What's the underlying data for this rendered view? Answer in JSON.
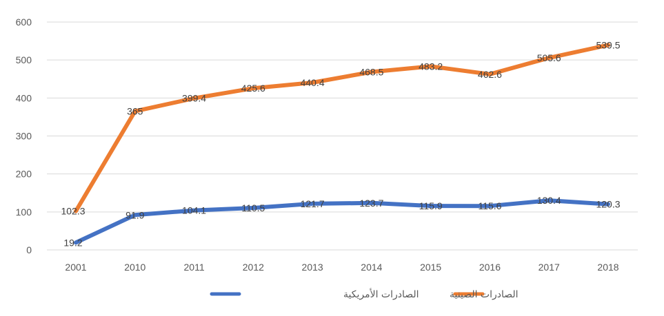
{
  "chart_data": {
    "type": "line",
    "title": "",
    "xlabel": "",
    "ylabel": "",
    "categories": [
      "2001",
      "2010",
      "2011",
      "2012",
      "2013",
      "2014",
      "2015",
      "2016",
      "2017",
      "2018"
    ],
    "ylim": [
      0,
      600
    ],
    "yticks": [
      "0",
      "100",
      "200",
      "300",
      "400",
      "500",
      "600"
    ],
    "grid": true,
    "legend_position": "bottom",
    "series": [
      {
        "name": "الصادرات الأمريكية",
        "color": "#4472c4",
        "values": [
          19.2,
          91.9,
          104.1,
          110.5,
          121.7,
          123.7,
          115.9,
          115.6,
          130.4,
          120.3
        ],
        "labels": [
          "19.2",
          "91.9",
          "104.1",
          "110.5",
          "121.7",
          "123.7",
          "115.9",
          "115.6",
          "130.4",
          "120.3"
        ]
      },
      {
        "name": "الصادرات الصينية",
        "color": "#ed7d31",
        "values": [
          102.3,
          365,
          399.4,
          425.6,
          440.4,
          468.5,
          483.2,
          462.6,
          505.6,
          539.5
        ],
        "labels": [
          "102.3",
          "365",
          "399.4",
          "425.6",
          "440.4",
          "468.5",
          "483.2",
          "462.6",
          "505.6",
          "539.5"
        ]
      }
    ]
  }
}
